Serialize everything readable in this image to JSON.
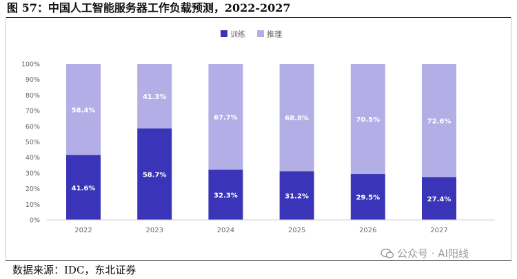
{
  "figure": {
    "title": "图 57：中国人工智能服务器工作负载预测，2022-2027",
    "source": "数据来源：IDC，东北证券",
    "watermark": "公众号 · AI阳线"
  },
  "colors": {
    "training": "#3a35b8",
    "inference": "#b3aee6",
    "axis_text": "#666666",
    "gridline": "#e4e4e4"
  },
  "chart_data": {
    "type": "bar",
    "stacked": true,
    "percent": true,
    "categories": [
      "2022",
      "2023",
      "2024",
      "2025",
      "2026",
      "2027"
    ],
    "series": [
      {
        "name": "训练",
        "values": [
          41.6,
          58.7,
          32.3,
          31.2,
          29.5,
          27.4
        ],
        "labels": [
          "41.6%",
          "58.7%",
          "32.3%",
          "31.2%",
          "29.5%",
          "27.4%"
        ]
      },
      {
        "name": "推理",
        "values": [
          58.4,
          41.3,
          67.7,
          68.8,
          70.5,
          72.6
        ],
        "labels": [
          "58.4%",
          "41.3%",
          "67.7%",
          "68.8%",
          "70.5%",
          "72.6%"
        ]
      }
    ],
    "ylim": [
      0,
      100
    ],
    "yticks": [
      "0%",
      "10%",
      "20%",
      "30%",
      "40%",
      "50%",
      "60%",
      "70%",
      "80%",
      "90%",
      "100%"
    ],
    "legend_position": "top-center",
    "grid": false
  }
}
